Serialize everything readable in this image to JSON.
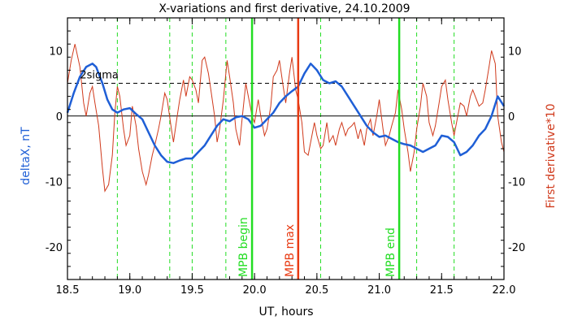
{
  "chart_data": {
    "type": "line",
    "title": "X-variations and first derivative, 24.10.2009",
    "xlabel": "UT, hours",
    "ylabel_left": "deltaX, nT",
    "ylabel_right": "First derivative*10",
    "xlim": [
      18.5,
      22.0
    ],
    "ylim": [
      -25,
      15
    ],
    "x_ticks": [
      18.5,
      19.0,
      19.5,
      20.0,
      20.5,
      21.0,
      21.5,
      22.0
    ],
    "x_tick_labels": [
      "18.5",
      "19.0",
      "19.5",
      "20.0",
      "20.5",
      "21.0",
      "21.5",
      "22.0"
    ],
    "y_ticks": [
      10,
      0,
      -10,
      -20
    ],
    "y_tick_labels": [
      "10",
      "0",
      "-10",
      "-20"
    ],
    "colors": {
      "deltaX": "#1f5fd6",
      "derivative": "#d03a1c",
      "mpb": "#22dd22",
      "mpb_max": "#e83a12",
      "axes": "#000000"
    },
    "thresholds": [
      {
        "label": "2sigma",
        "y": 5,
        "style": "dashed"
      },
      {
        "label": "",
        "y": 0,
        "style": "solid"
      }
    ],
    "vlines_dashed": [
      18.9,
      19.32,
      19.5,
      19.77,
      20.53,
      21.3,
      21.6
    ],
    "markers": [
      {
        "label": "MPB begin",
        "x": 19.98,
        "color": "#22dd22"
      },
      {
        "label": "MPB max",
        "x": 20.35,
        "color": "#e83a12"
      },
      {
        "label": "MPB end",
        "x": 21.16,
        "color": "#22dd22"
      }
    ],
    "series": [
      {
        "name": "deltaX",
        "axis": "left",
        "x": [
          18.5,
          18.55,
          18.6,
          18.65,
          18.7,
          18.73,
          18.78,
          18.82,
          18.86,
          18.9,
          18.95,
          19.0,
          19.05,
          19.1,
          19.15,
          19.2,
          19.25,
          19.3,
          19.35,
          19.4,
          19.45,
          19.5,
          19.55,
          19.6,
          19.65,
          19.7,
          19.75,
          19.8,
          19.85,
          19.9,
          19.95,
          20.0,
          20.05,
          20.1,
          20.15,
          20.2,
          20.25,
          20.3,
          20.35,
          20.4,
          20.45,
          20.5,
          20.55,
          20.6,
          20.65,
          20.7,
          20.75,
          20.8,
          20.85,
          20.9,
          20.95,
          21.0,
          21.05,
          21.1,
          21.15,
          21.2,
          21.25,
          21.3,
          21.35,
          21.4,
          21.45,
          21.5,
          21.55,
          21.6,
          21.65,
          21.7,
          21.75,
          21.8,
          21.85,
          21.9,
          21.95,
          22.0
        ],
        "y": [
          0.5,
          3.5,
          6.0,
          7.5,
          8.0,
          7.5,
          5.0,
          2.5,
          1.0,
          0.5,
          1.0,
          1.2,
          0.3,
          -0.5,
          -2.5,
          -4.5,
          -6.0,
          -7.0,
          -7.2,
          -6.8,
          -6.5,
          -6.5,
          -5.5,
          -4.5,
          -3.0,
          -1.5,
          -0.5,
          -0.8,
          -0.2,
          0.0,
          -0.5,
          -1.8,
          -1.5,
          -0.5,
          0.5,
          2.0,
          3.0,
          3.8,
          4.5,
          6.5,
          8.0,
          7.0,
          5.5,
          5.0,
          5.3,
          4.5,
          3.0,
          1.5,
          0.0,
          -1.5,
          -2.5,
          -3.2,
          -3.0,
          -3.5,
          -4.0,
          -4.3,
          -4.5,
          -5.0,
          -5.5,
          -5.0,
          -4.5,
          -3.0,
          -3.2,
          -4.0,
          -6.0,
          -5.5,
          -4.5,
          -3.0,
          -2.0,
          0.0,
          3.0,
          1.5
        ]
      },
      {
        "name": "First derivative*10",
        "axis": "right",
        "x": [
          18.5,
          18.53,
          18.56,
          18.6,
          18.63,
          18.65,
          18.68,
          18.7,
          18.72,
          18.75,
          18.78,
          18.8,
          18.83,
          18.86,
          18.88,
          18.9,
          18.92,
          18.95,
          18.97,
          19.0,
          19.02,
          19.05,
          19.07,
          19.1,
          19.13,
          19.15,
          19.18,
          19.2,
          19.23,
          19.25,
          19.28,
          19.3,
          19.33,
          19.35,
          19.38,
          19.4,
          19.43,
          19.45,
          19.48,
          19.5,
          19.53,
          19.55,
          19.58,
          19.6,
          19.63,
          19.65,
          19.68,
          19.7,
          19.72,
          19.75,
          19.78,
          19.8,
          19.83,
          19.85,
          19.88,
          19.9,
          19.93,
          19.95,
          19.98,
          20.0,
          20.03,
          20.05,
          20.08,
          20.1,
          20.13,
          20.15,
          20.18,
          20.2,
          20.23,
          20.25,
          20.28,
          20.3,
          20.33,
          20.35,
          20.38,
          20.4,
          20.43,
          20.45,
          20.48,
          20.5,
          20.53,
          20.55,
          20.58,
          20.6,
          20.63,
          20.65,
          20.68,
          20.7,
          20.73,
          20.75,
          20.78,
          20.8,
          20.83,
          20.85,
          20.88,
          20.9,
          20.93,
          20.95,
          20.98,
          21.0,
          21.03,
          21.05,
          21.08,
          21.1,
          21.13,
          21.15,
          21.18,
          21.2,
          21.23,
          21.25,
          21.28,
          21.3,
          21.33,
          21.35,
          21.38,
          21.4,
          21.43,
          21.45,
          21.48,
          21.5,
          21.53,
          21.55,
          21.58,
          21.6,
          21.63,
          21.65,
          21.68,
          21.7,
          21.73,
          21.75,
          21.78,
          21.8,
          21.83,
          21.85,
          21.88,
          21.9,
          21.93,
          21.95,
          21.98,
          22.0
        ],
        "y": [
          5.0,
          8.5,
          11.0,
          7.5,
          2.0,
          0.0,
          3.5,
          4.5,
          2.0,
          -1.5,
          -8.0,
          -11.5,
          -10.5,
          -6.0,
          0.5,
          4.5,
          3.0,
          -2.0,
          -4.5,
          -3.0,
          1.5,
          -1.5,
          -5.0,
          -8.5,
          -10.5,
          -9.0,
          -6.0,
          -4.5,
          -2.0,
          0.0,
          3.5,
          2.5,
          -1.5,
          -4.0,
          0.0,
          2.5,
          5.5,
          3.0,
          6.0,
          5.5,
          4.0,
          2.0,
          8.5,
          9.0,
          6.5,
          4.0,
          0.0,
          -4.0,
          -2.0,
          2.5,
          8.5,
          6.0,
          2.0,
          -2.0,
          -4.5,
          -0.5,
          5.0,
          3.0,
          0.0,
          -1.0,
          2.5,
          0.0,
          -3.0,
          -2.0,
          1.5,
          6.0,
          7.0,
          8.5,
          4.5,
          2.0,
          6.5,
          9.0,
          4.0,
          2.5,
          -1.0,
          -5.5,
          -6.0,
          -4.0,
          -1.0,
          -3.0,
          -5.0,
          -4.5,
          -1.0,
          -4.0,
          -3.0,
          -4.5,
          -2.0,
          -1.0,
          -3.0,
          -2.0,
          -1.5,
          -1.0,
          -3.5,
          -2.0,
          -4.5,
          -2.0,
          -0.5,
          -3.0,
          0.0,
          2.5,
          -2.0,
          -4.5,
          -3.0,
          -1.5,
          0.5,
          4.0,
          1.0,
          -2.0,
          -5.5,
          -8.5,
          -5.5,
          -2.0,
          1.5,
          5.0,
          3.0,
          -1.0,
          -3.0,
          -1.5,
          2.0,
          4.5,
          5.5,
          2.5,
          -1.0,
          -3.0,
          0.0,
          2.0,
          1.5,
          0.0,
          3.0,
          4.0,
          2.5,
          1.5,
          2.0,
          4.0,
          7.5,
          10.0,
          8.0,
          0.0,
          -4.0,
          -5.5
        ]
      }
    ]
  }
}
